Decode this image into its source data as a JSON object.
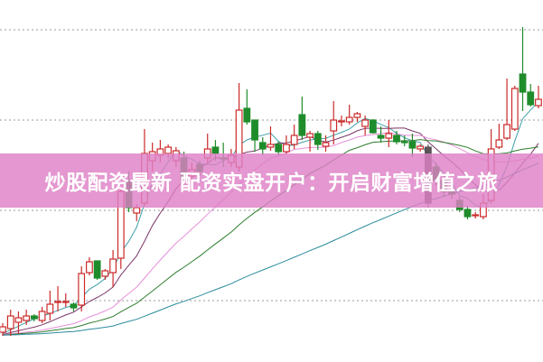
{
  "banner": {
    "title": "炒股配资最新 配资实盘开户：开启财富增值之旅"
  },
  "colors": {
    "up": "#cc2a2a",
    "down": "#1e8c2a",
    "down_large": "#5a5456",
    "grid": "#999999",
    "banner": "#de80c6",
    "ma": [
      "#3d9fa8",
      "#7a3668",
      "#e690d8",
      "#2e7d2e",
      "#2b8c9c"
    ]
  },
  "chart_data": {
    "type": "candlestick",
    "title": "",
    "xlabel": "",
    "ylabel": "",
    "grid": true,
    "moving_averages": [
      5,
      10,
      20,
      30,
      60
    ],
    "ohlc": [
      [
        3.2,
        3.8,
        4.2,
        2.8
      ],
      [
        3.6,
        5.0,
        5.7,
        2.8
      ],
      [
        4.3,
        4.8,
        5.5,
        3.0
      ],
      [
        4.5,
        5.0,
        5.7,
        4.0
      ],
      [
        5.0,
        4.7,
        5.2,
        4.4
      ],
      [
        4.5,
        5.5,
        6.0,
        4.2
      ],
      [
        5.3,
        6.3,
        7.8,
        4.5
      ],
      [
        6.5,
        6.6,
        8.3,
        5.5
      ],
      [
        6.5,
        6.6,
        7.5,
        6.0
      ],
      [
        6.3,
        5.9,
        6.5,
        5.5
      ],
      [
        6.2,
        9.7,
        10.5,
        5.5
      ],
      [
        9.8,
        11.0,
        11.5,
        9.5
      ],
      [
        11.1,
        9.2,
        11.1,
        9.0
      ],
      [
        9.4,
        10.0,
        10.2,
        9.0
      ],
      [
        9.8,
        11.3,
        12.3,
        8.2
      ],
      [
        11.4,
        18.8,
        19.0,
        10.2
      ],
      [
        20.0,
        17.0,
        21.0,
        16.5
      ],
      [
        16.4,
        17.0,
        17.4,
        15.5
      ],
      [
        17.5,
        23.0,
        25.7,
        17.2
      ],
      [
        22.2,
        23.2,
        24.2,
        21.0
      ],
      [
        22.8,
        23.5,
        24.5,
        22.0
      ],
      [
        23.0,
        23.7,
        24.0,
        22.5
      ],
      [
        22.2,
        23.3,
        23.7,
        21.5
      ],
      [
        22.5,
        20.0,
        23.2,
        19.5
      ],
      [
        20.5,
        21.2,
        22.0,
        20.0
      ],
      [
        21.8,
        21.0,
        22.2,
        20.5
      ],
      [
        22.5,
        23.5,
        25.2,
        22.0
      ],
      [
        23.7,
        23.0,
        24.5,
        22.2
      ],
      [
        22.5,
        22.4,
        24.2,
        21.5
      ],
      [
        22.0,
        22.8,
        23.5,
        21.5
      ],
      [
        21.5,
        27.8,
        30.8,
        21.0
      ],
      [
        28.0,
        26.5,
        30.1,
        26.2
      ],
      [
        26.7,
        24.5,
        26.7,
        23.2
      ],
      [
        24.2,
        23.5,
        24.8,
        22.8
      ],
      [
        23.7,
        24.0,
        26.0,
        23.3
      ],
      [
        24.0,
        23.2,
        24.3,
        22.8
      ],
      [
        23.2,
        24.0,
        25.0,
        23.0
      ],
      [
        24.0,
        25.0,
        26.2,
        23.5
      ],
      [
        27.3,
        25.0,
        29.3,
        24.5
      ],
      [
        24.8,
        25.2,
        25.5,
        23.2
      ],
      [
        25.2,
        24.0,
        25.5,
        23.4
      ],
      [
        23.8,
        24.2,
        25.0,
        23.2
      ],
      [
        25.5,
        26.7,
        28.8,
        24.0
      ],
      [
        26.6,
        26.6,
        27.2,
        26.0
      ],
      [
        26.5,
        27.0,
        28.4,
        26.2
      ],
      [
        27.0,
        27.4,
        27.6,
        26.5
      ],
      [
        26.0,
        26.7,
        27.2,
        25.0
      ],
      [
        26.7,
        25.3,
        26.8,
        25.2
      ],
      [
        25.0,
        24.7,
        26.0,
        24.2
      ],
      [
        24.7,
        25.2,
        26.7,
        23.7
      ],
      [
        25.0,
        24.3,
        25.5,
        24.0
      ],
      [
        24.3,
        24.2,
        25.0,
        23.8
      ],
      [
        24.3,
        23.6,
        25.2,
        22.6
      ],
      [
        23.5,
        23.8,
        24.0,
        23.2
      ],
      [
        23.7,
        17.5,
        24.0,
        17.0
      ],
      [
        21.5,
        20.0,
        22.0,
        19.5
      ],
      [
        20.0,
        18.8,
        20.5,
        18.2
      ],
      [
        18.8,
        18.5,
        19.5,
        18.0
      ],
      [
        17.8,
        16.8,
        18.2,
        16.5
      ],
      [
        16.8,
        16.0,
        17.2,
        15.7
      ],
      [
        16.2,
        16.2,
        16.5,
        15.8
      ],
      [
        16.0,
        17.5,
        18.5,
        15.7
      ],
      [
        17.8,
        23.5,
        25.7,
        17.5
      ],
      [
        23.7,
        24.5,
        26.3,
        23.5
      ],
      [
        24.7,
        26.2,
        31.3,
        24.5
      ],
      [
        25.7,
        30.2,
        30.5,
        25.5
      ],
      [
        31.8,
        29.8,
        37.0,
        27.7
      ],
      [
        29.8,
        28.4,
        30.7,
        28.2
      ],
      [
        28.3,
        29.0,
        30.5,
        28.0
      ]
    ],
    "gridlines": [
      6.7,
      16.7,
      26.7,
      36.7
    ]
  }
}
